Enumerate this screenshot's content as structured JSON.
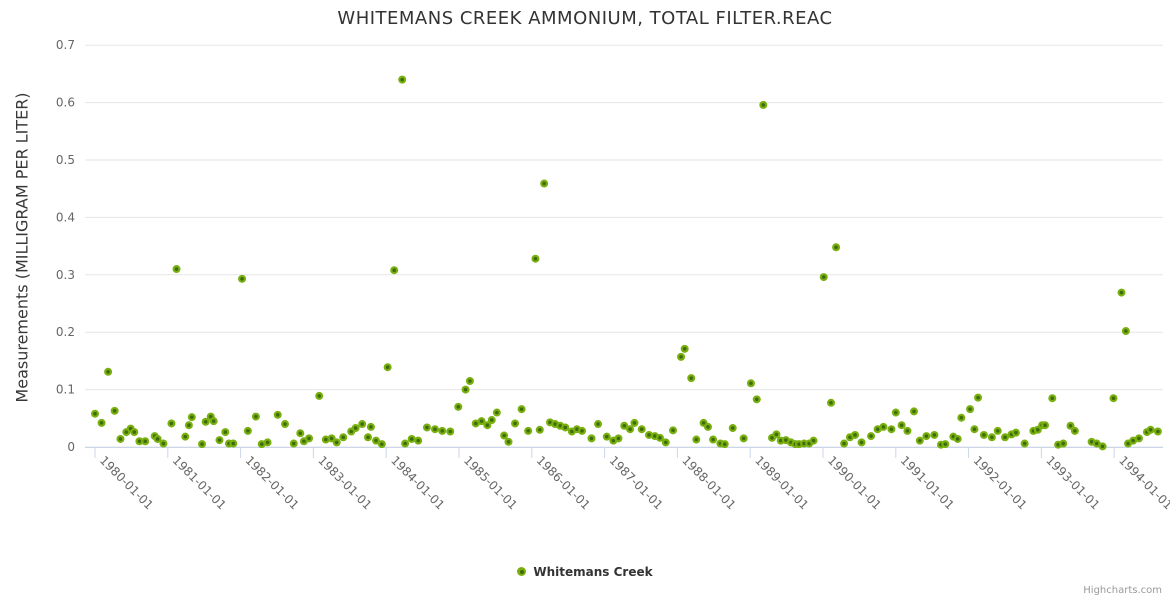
{
  "credit": "Highcharts.com",
  "chart_data": {
    "type": "scatter",
    "title": "WHITEMANS CREEK AMMONIUM, TOTAL FILTER.REAC",
    "ylabel": "Measurements (MILLIGRAM PER LITER)",
    "xlabel": "",
    "series_name": "Whitemans Creek",
    "legend_position": "bottom-center",
    "grid": true,
    "ylim": [
      0,
      0.7
    ],
    "y_ticks": [
      0,
      0.1,
      0.2,
      0.3,
      0.4,
      0.5,
      0.6,
      0.7
    ],
    "xlim_years": [
      1979.86,
      1994.67
    ],
    "x_tick_labels": [
      "1980-01-01",
      "1981-01-01",
      "1982-01-01",
      "1983-01-01",
      "1984-01-01",
      "1985-01-01",
      "1986-01-01",
      "1987-01-01",
      "1988-01-01",
      "1989-01-01",
      "1990-01-01",
      "1991-01-01",
      "1992-01-01",
      "1993-01-01",
      "1994-01-01"
    ],
    "colors": {
      "point": "#79b00f",
      "point_center": "#3e6c0c",
      "grid": "#e6e6e6",
      "axis": "#ccd6eb",
      "tick_label": "#666666",
      "title": "#333333",
      "credit": "#999999"
    },
    "points": [
      [
        1980.0,
        0.058
      ],
      [
        1980.09,
        0.042
      ],
      [
        1980.18,
        0.131
      ],
      [
        1980.27,
        0.063
      ],
      [
        1980.35,
        0.014
      ],
      [
        1980.43,
        0.026
      ],
      [
        1980.49,
        0.032
      ],
      [
        1980.54,
        0.026
      ],
      [
        1980.61,
        0.01
      ],
      [
        1980.69,
        0.01
      ],
      [
        1980.82,
        0.019
      ],
      [
        1980.86,
        0.014
      ],
      [
        1980.94,
        0.006
      ],
      [
        1981.05,
        0.041
      ],
      [
        1981.12,
        0.31
      ],
      [
        1981.24,
        0.018
      ],
      [
        1981.29,
        0.038
      ],
      [
        1981.33,
        0.052
      ],
      [
        1981.47,
        0.005
      ],
      [
        1981.52,
        0.044
      ],
      [
        1981.59,
        0.053
      ],
      [
        1981.63,
        0.045
      ],
      [
        1981.71,
        0.012
      ],
      [
        1981.79,
        0.026
      ],
      [
        1981.84,
        0.006
      ],
      [
        1981.9,
        0.006
      ],
      [
        1982.02,
        0.293
      ],
      [
        1982.1,
        0.028
      ],
      [
        1982.21,
        0.053
      ],
      [
        1982.29,
        0.005
      ],
      [
        1982.37,
        0.008
      ],
      [
        1982.51,
        0.056
      ],
      [
        1982.61,
        0.04
      ],
      [
        1982.73,
        0.006
      ],
      [
        1982.82,
        0.024
      ],
      [
        1982.87,
        0.01
      ],
      [
        1982.94,
        0.015
      ],
      [
        1983.08,
        0.089
      ],
      [
        1983.17,
        0.013
      ],
      [
        1983.25,
        0.015
      ],
      [
        1983.32,
        0.008
      ],
      [
        1983.41,
        0.017
      ],
      [
        1983.52,
        0.027
      ],
      [
        1983.58,
        0.033
      ],
      [
        1983.67,
        0.04
      ],
      [
        1983.75,
        0.017
      ],
      [
        1983.79,
        0.035
      ],
      [
        1983.86,
        0.011
      ],
      [
        1983.94,
        0.005
      ],
      [
        1984.02,
        0.139
      ],
      [
        1984.11,
        0.308
      ],
      [
        1984.22,
        0.64
      ],
      [
        1984.26,
        0.006
      ],
      [
        1984.35,
        0.014
      ],
      [
        1984.44,
        0.011
      ],
      [
        1984.56,
        0.034
      ],
      [
        1984.67,
        0.031
      ],
      [
        1984.77,
        0.028
      ],
      [
        1984.88,
        0.027
      ],
      [
        1984.99,
        0.07
      ],
      [
        1985.09,
        0.1
      ],
      [
        1985.15,
        0.115
      ],
      [
        1985.23,
        0.041
      ],
      [
        1985.31,
        0.045
      ],
      [
        1985.39,
        0.038
      ],
      [
        1985.45,
        0.047
      ],
      [
        1985.52,
        0.06
      ],
      [
        1985.62,
        0.02
      ],
      [
        1985.68,
        0.009
      ],
      [
        1985.77,
        0.041
      ],
      [
        1985.86,
        0.066
      ],
      [
        1985.95,
        0.028
      ],
      [
        1986.05,
        0.328
      ],
      [
        1986.11,
        0.03
      ],
      [
        1986.17,
        0.459
      ],
      [
        1986.25,
        0.043
      ],
      [
        1986.32,
        0.04
      ],
      [
        1986.39,
        0.037
      ],
      [
        1986.46,
        0.034
      ],
      [
        1986.55,
        0.027
      ],
      [
        1986.62,
        0.031
      ],
      [
        1986.69,
        0.028
      ],
      [
        1986.82,
        0.015
      ],
      [
        1986.91,
        0.04
      ],
      [
        1987.03,
        0.018
      ],
      [
        1987.12,
        0.011
      ],
      [
        1987.19,
        0.015
      ],
      [
        1987.27,
        0.037
      ],
      [
        1987.35,
        0.031
      ],
      [
        1987.41,
        0.042
      ],
      [
        1987.51,
        0.031
      ],
      [
        1987.61,
        0.021
      ],
      [
        1987.69,
        0.019
      ],
      [
        1987.76,
        0.016
      ],
      [
        1987.84,
        0.008
      ],
      [
        1987.94,
        0.029
      ],
      [
        1988.05,
        0.157
      ],
      [
        1988.1,
        0.171
      ],
      [
        1988.19,
        0.12
      ],
      [
        1988.26,
        0.013
      ],
      [
        1988.36,
        0.042
      ],
      [
        1988.42,
        0.035
      ],
      [
        1988.49,
        0.013
      ],
      [
        1988.59,
        0.006
      ],
      [
        1988.65,
        0.005
      ],
      [
        1988.76,
        0.033
      ],
      [
        1988.91,
        0.015
      ],
      [
        1989.01,
        0.111
      ],
      [
        1989.09,
        0.083
      ],
      [
        1989.18,
        0.596
      ],
      [
        1989.3,
        0.016
      ],
      [
        1989.36,
        0.022
      ],
      [
        1989.42,
        0.011
      ],
      [
        1989.49,
        0.012
      ],
      [
        1989.56,
        0.008
      ],
      [
        1989.62,
        0.005
      ],
      [
        1989.67,
        0.005
      ],
      [
        1989.74,
        0.006
      ],
      [
        1989.81,
        0.006
      ],
      [
        1989.87,
        0.011
      ],
      [
        1990.01,
        0.296
      ],
      [
        1990.11,
        0.077
      ],
      [
        1990.18,
        0.348
      ],
      [
        1990.29,
        0.006
      ],
      [
        1990.37,
        0.017
      ],
      [
        1990.44,
        0.021
      ],
      [
        1990.53,
        0.008
      ],
      [
        1990.66,
        0.019
      ],
      [
        1990.75,
        0.031
      ],
      [
        1990.83,
        0.035
      ],
      [
        1990.94,
        0.031
      ],
      [
        1991.0,
        0.06
      ],
      [
        1991.08,
        0.038
      ],
      [
        1991.16,
        0.028
      ],
      [
        1991.25,
        0.062
      ],
      [
        1991.33,
        0.011
      ],
      [
        1991.42,
        0.019
      ],
      [
        1991.53,
        0.021
      ],
      [
        1991.62,
        0.004
      ],
      [
        1991.68,
        0.005
      ],
      [
        1991.79,
        0.018
      ],
      [
        1991.85,
        0.014
      ],
      [
        1991.9,
        0.051
      ],
      [
        1992.02,
        0.066
      ],
      [
        1992.08,
        0.031
      ],
      [
        1992.13,
        0.086
      ],
      [
        1992.21,
        0.021
      ],
      [
        1992.32,
        0.017
      ],
      [
        1992.4,
        0.028
      ],
      [
        1992.5,
        0.017
      ],
      [
        1992.59,
        0.022
      ],
      [
        1992.65,
        0.025
      ],
      [
        1992.77,
        0.006
      ],
      [
        1992.89,
        0.028
      ],
      [
        1992.95,
        0.03
      ],
      [
        1993.01,
        0.038
      ],
      [
        1993.05,
        0.038
      ],
      [
        1993.15,
        0.085
      ],
      [
        1993.23,
        0.004
      ],
      [
        1993.3,
        0.006
      ],
      [
        1993.4,
        0.037
      ],
      [
        1993.46,
        0.028
      ],
      [
        1993.69,
        0.009
      ],
      [
        1993.76,
        0.006
      ],
      [
        1993.84,
        0.001
      ],
      [
        1993.99,
        0.085
      ],
      [
        1994.1,
        0.269
      ],
      [
        1994.16,
        0.202
      ],
      [
        1994.19,
        0.006
      ],
      [
        1994.26,
        0.011
      ],
      [
        1994.34,
        0.015
      ],
      [
        1994.45,
        0.026
      ],
      [
        1994.5,
        0.03
      ],
      [
        1994.6,
        0.027
      ]
    ]
  }
}
